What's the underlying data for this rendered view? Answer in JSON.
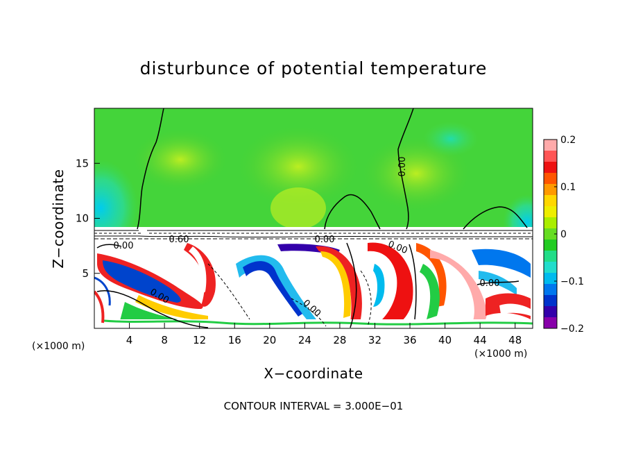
{
  "chart_data": {
    "type": "heatmap",
    "title": "disturbunce of potential temperature",
    "xlabel": "X−coordinate",
    "ylabel": "Z−coordinate",
    "x_unit": "(×1000 m)",
    "x_unit_right": "(×1000 m)",
    "xlim": [
      0,
      50
    ],
    "ylim": [
      0,
      20
    ],
    "xticks": [
      4,
      8,
      12,
      16,
      20,
      24,
      28,
      32,
      36,
      40,
      44,
      48
    ],
    "yticks": [
      5,
      10,
      15
    ],
    "colorbar": {
      "range": [
        -0.2,
        0.2
      ],
      "tick_values": [
        0.2,
        0.1,
        0,
        -0.1,
        -0.2
      ],
      "tick_labels": [
        "0.2",
        "0.1",
        "0",
        "−0.1",
        "−0.2"
      ],
      "colors": [
        "#ffaaaa",
        "#ff5555",
        "#ee1111",
        "#ff5500",
        "#ff9900",
        "#ffd700",
        "#eeee00",
        "#aaee00",
        "#66dd22",
        "#22cc22",
        "#22dd88",
        "#22ddcc",
        "#00bbee",
        "#0077ee",
        "#0033cc",
        "#3300aa",
        "#8800aa"
      ]
    },
    "contour_labels": [
      "0.00",
      "0.00",
      "0.60",
      "0.00",
      "0.00",
      "0.00",
      "0.00",
      "0.00"
    ],
    "footnote": "CONTOUR INTERVAL = 3.000E−01"
  }
}
